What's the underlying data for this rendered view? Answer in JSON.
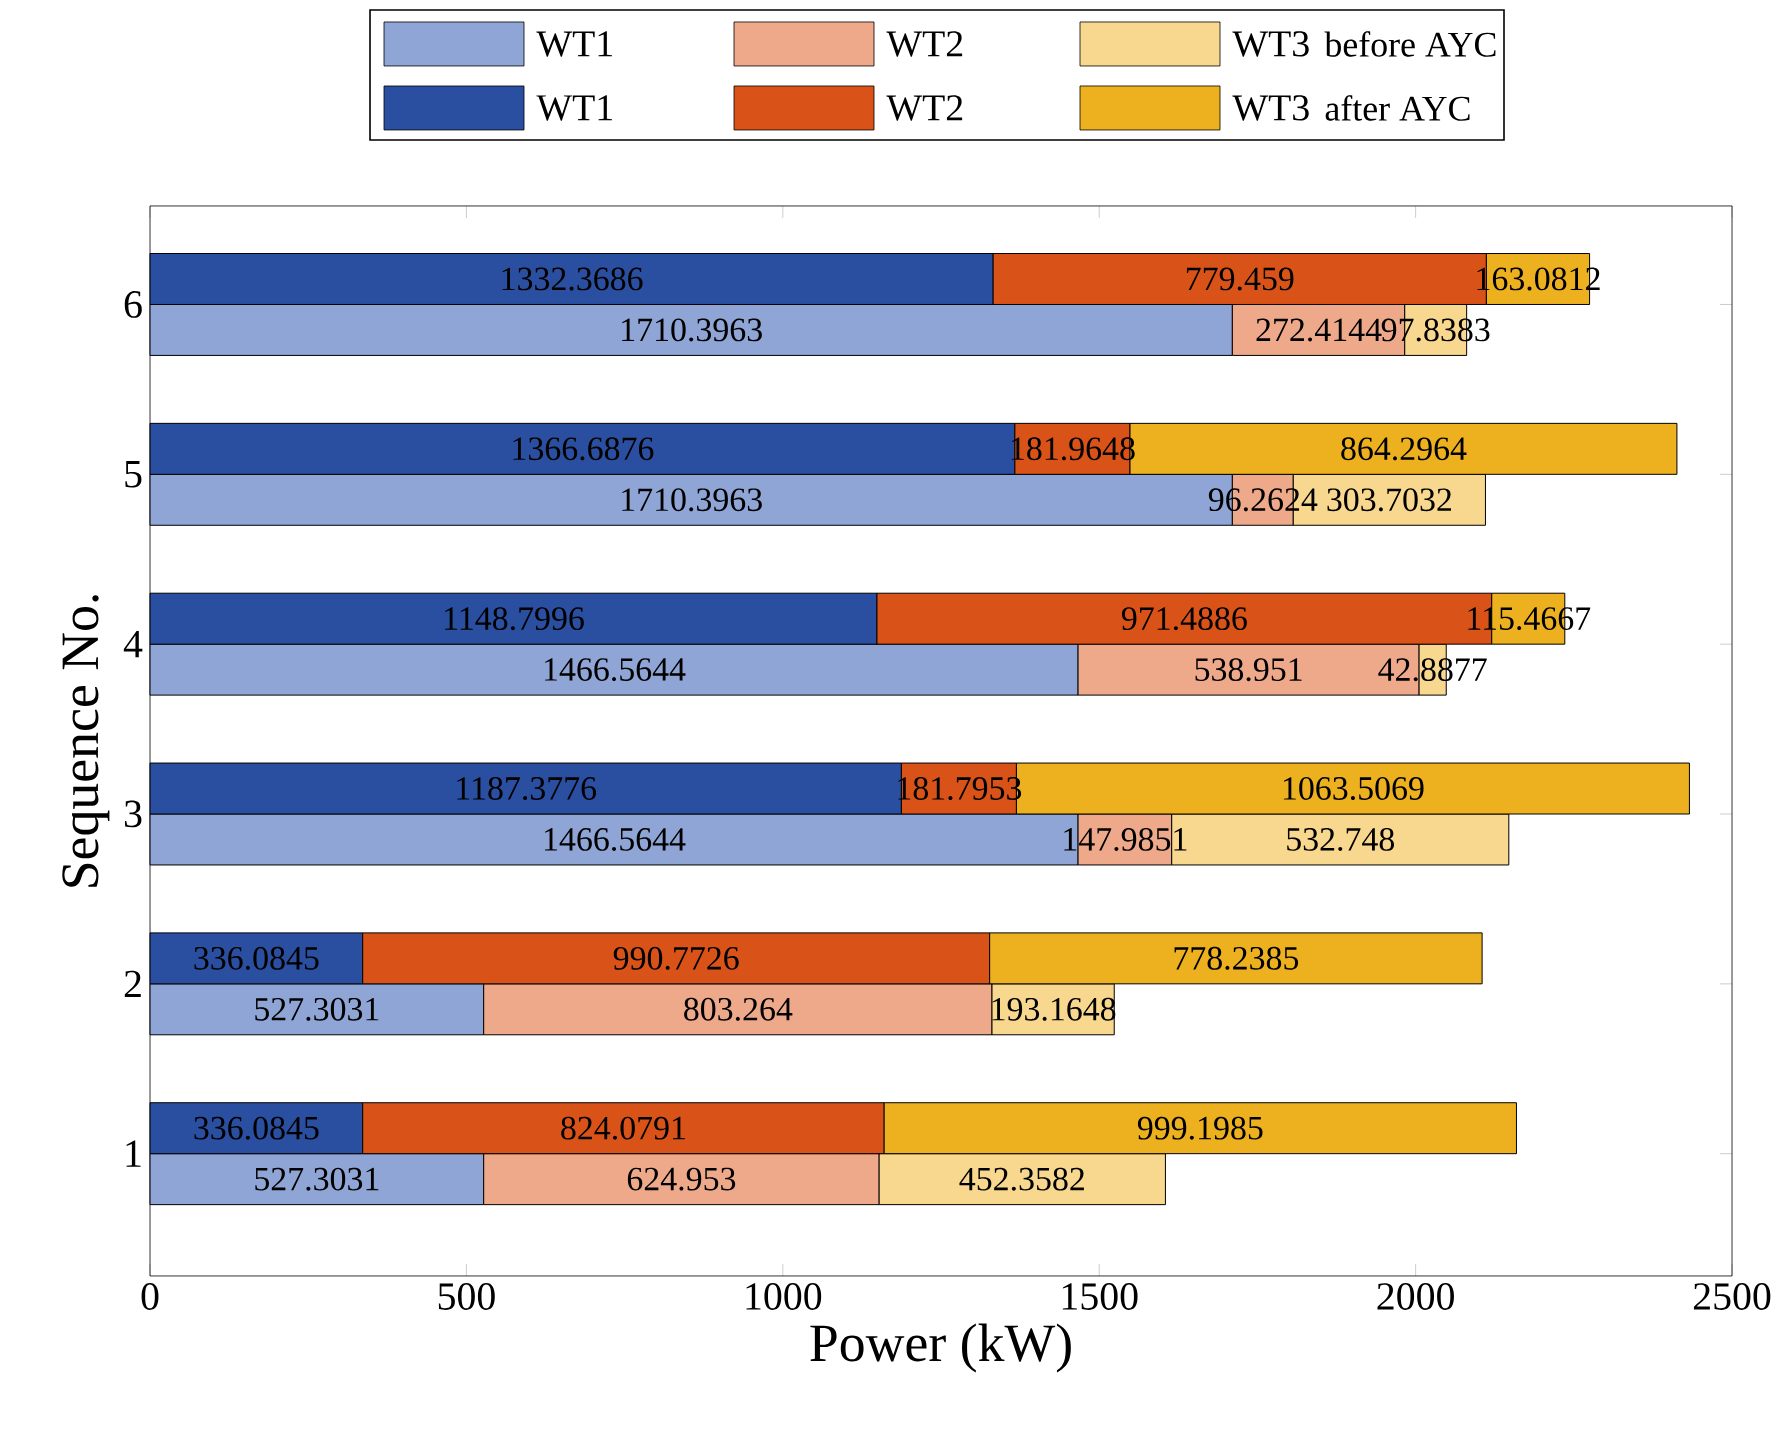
{
  "chart_data": [
    {
      "type": "bar",
      "orientation": "horizontal",
      "stacked": true,
      "xlabel": "Power (kW)",
      "ylabel": "Sequence No.",
      "legend_title": "before AYC",
      "categories": [
        "6",
        "5",
        "4",
        "3",
        "2",
        "1"
      ],
      "series": [
        {
          "name": "WT1",
          "color": "#8fa5d6",
          "values": [
            1710.3963,
            1710.3963,
            1466.5644,
            1466.5644,
            527.3031,
            527.3031
          ]
        },
        {
          "name": "WT2",
          "color": "#eea98a",
          "values": [
            272.4144,
            96.2624,
            538.951,
            147.9851,
            803.264,
            624.953
          ]
        },
        {
          "name": "WT3",
          "color": "#f8d78e",
          "values": [
            97.8383,
            303.7032,
            42.8877,
            532.748,
            193.1648,
            452.3582
          ]
        }
      ],
      "xlim": [
        0,
        2500
      ],
      "xticks": [
        0,
        500,
        1000,
        1500,
        2000,
        2500
      ],
      "data_labels": true,
      "legend": "top",
      "grid": false
    },
    {
      "type": "bar",
      "orientation": "horizontal",
      "stacked": true,
      "legend_title": "after AYC",
      "categories": [
        "6",
        "5",
        "4",
        "3",
        "2",
        "1"
      ],
      "series": [
        {
          "name": "WT1",
          "color": "#2b4fa0",
          "values": [
            1332.3686,
            1366.6876,
            1148.7996,
            1187.3776,
            336.0845,
            336.0845
          ]
        },
        {
          "name": "WT2",
          "color": "#d95319",
          "values": [
            779.459,
            181.9648,
            971.4886,
            181.7953,
            990.7726,
            824.0791
          ]
        },
        {
          "name": "WT3",
          "color": "#edb120",
          "values": [
            163.0812,
            864.2964,
            115.4667,
            1063.5069,
            778.2385,
            999.1985
          ]
        }
      ],
      "xlim": [
        0,
        2500
      ],
      "xticks": [
        0,
        500,
        1000,
        1500,
        2000,
        2500
      ],
      "data_labels": true,
      "legend": "top",
      "grid": false,
      "tick_labels": false
    }
  ]
}
